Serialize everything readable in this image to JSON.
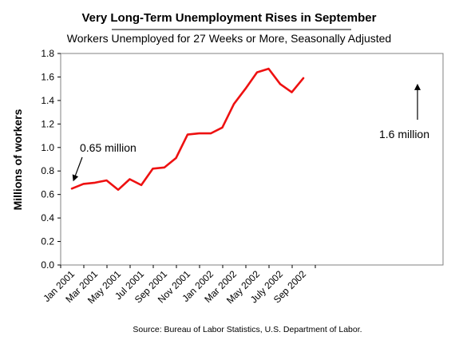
{
  "chart_data": {
    "type": "line",
    "title": "Very Long-Term Unemployment Rises in September",
    "subtitle": "Workers Unemployed for 27 Weeks or More, Seasonally Adjusted",
    "ylabel": "Millions of workers",
    "xlabel": "",
    "source": "Source: Bureau of Labor Statistics, U.S. Department of Labor.",
    "ylim": [
      0,
      1.8
    ],
    "yticks": [
      "0.0",
      "0.2",
      "0.4",
      "0.6",
      "0.8",
      "1.0",
      "1.2",
      "1.4",
      "1.6",
      "1.8"
    ],
    "x": [
      "Jan 2001",
      "Feb 2001",
      "Mar 2001",
      "Apr 2001",
      "May 2001",
      "Jun 2001",
      "Jul 2001",
      "Aug 2001",
      "Sep 2001",
      "Oct 2001",
      "Nov 2001",
      "Dec 2001",
      "Jan 2002",
      "Feb 2002",
      "Mar 2002",
      "Apr 2002",
      "May 2002",
      "Jun 2002",
      "Jul 2002",
      "Aug 2002",
      "Sep 2002"
    ],
    "tick_labels": [
      "Jan 2001",
      "Mar 2001",
      "May 2001",
      "Jul 2001",
      "Sep 2001",
      "Nov 2001",
      "Jan 2002",
      "Mar 2002",
      "May 2002",
      "July 2002",
      "Sep 2002"
    ],
    "series": [
      {
        "color": "#ee1111",
        "values": [
          0.65,
          0.69,
          0.7,
          0.72,
          0.64,
          0.73,
          0.68,
          0.82,
          0.83,
          0.91,
          1.11,
          1.12,
          1.12,
          1.17,
          1.37,
          1.5,
          1.64,
          1.67,
          1.54,
          1.47,
          1.59
        ]
      }
    ],
    "annotations": [
      {
        "text": "0.65 million",
        "index": 0
      },
      {
        "text": "1.6 million",
        "index": 20
      }
    ],
    "grid": false,
    "legend": "none"
  }
}
